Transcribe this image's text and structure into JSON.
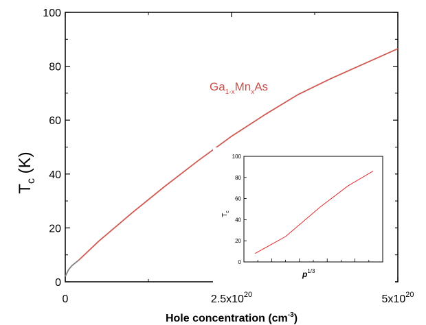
{
  "chart_data": [
    {
      "type": "line",
      "xlabel": "Hole concentration (cm",
      "xlabel_sup": "-3",
      "xlabel_end": ")",
      "ylabel_main": "T",
      "ylabel_sub": "c",
      "ylabel_unit": " (K)",
      "xlim": [
        0,
        5e+20
      ],
      "ylim": [
        0,
        100
      ],
      "x_ticks": [
        {
          "value": 0,
          "base": "0",
          "exp": ""
        },
        {
          "value": 2.5e+20,
          "base": "2.5x10",
          "exp": "20"
        },
        {
          "value": 5e+20,
          "base": "5x10",
          "exp": "20"
        }
      ],
      "y_ticks": [
        0,
        20,
        40,
        60,
        80,
        100
      ],
      "annotation": {
        "parts": [
          "Ga",
          "1-x",
          "Mn",
          "x",
          "As"
        ],
        "color": "#c8504a"
      },
      "series": [
        {
          "color": "#d05a52",
          "low_segment_color": "#808080",
          "low_segment_until": 2e+19,
          "x": [
            0,
            5e+18,
            1e+19,
            2e+19,
            5e+19,
            1e+20,
            1.5e+20,
            2e+20,
            2.5e+20,
            3e+20,
            3.5e+20,
            4e+20,
            4.5e+20,
            5e+20
          ],
          "y": [
            2,
            4.5,
            6,
            8,
            15,
            25.5,
            35.5,
            45,
            54,
            62,
            69.5,
            75.5,
            81,
            86.5
          ]
        }
      ]
    },
    {
      "type": "line",
      "inset": true,
      "xlabel_main": "p",
      "xlabel_sup": "1/3",
      "ylabel_main": "T",
      "ylabel_sub": "c",
      "ylim": [
        0,
        100
      ],
      "xlim": [
        0,
        1
      ],
      "y_ticks": [
        0,
        20,
        40,
        60,
        80,
        100
      ],
      "series": [
        {
          "color": "#e0282a",
          "x": [
            0.08,
            0.3,
            0.55,
            0.75,
            0.93
          ],
          "y": [
            8,
            24,
            52,
            72,
            86
          ]
        }
      ]
    }
  ]
}
